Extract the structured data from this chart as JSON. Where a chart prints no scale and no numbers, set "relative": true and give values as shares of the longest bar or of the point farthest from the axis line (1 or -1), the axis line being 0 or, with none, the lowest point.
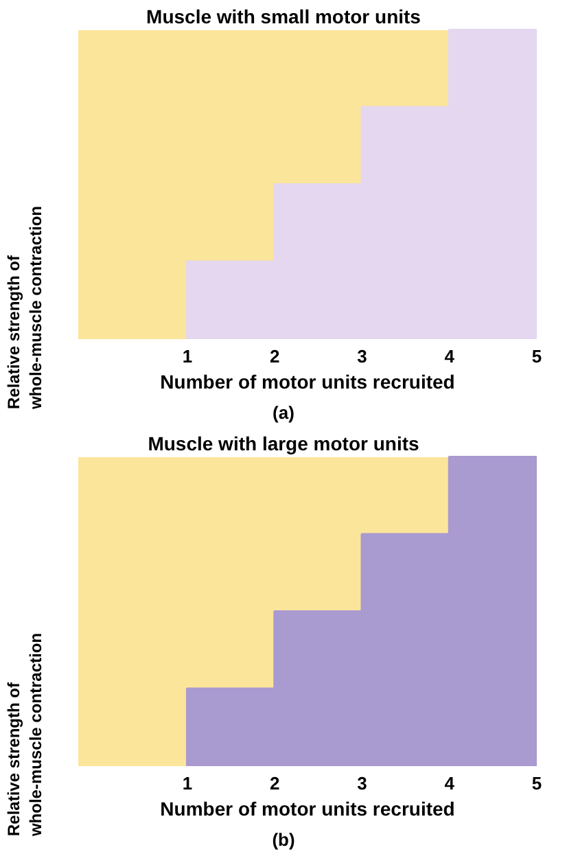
{
  "chart_data": [
    {
      "type": "area",
      "title": "Muscle with small motor units",
      "xlabel": "Number of motor units recruited",
      "ylabel": "Relative strength of\nwhole-muscle contraction",
      "annotations": [
        "(a)"
      ],
      "x": [
        1,
        1,
        2,
        2,
        3,
        3,
        4,
        4,
        5
      ],
      "xlim": [
        -0.25,
        5
      ],
      "xticks": [
        1,
        2,
        3,
        4,
        5
      ],
      "relative": true,
      "series": [
        {
          "color": "#e4d7ef",
          "values": [
            0,
            0.25,
            0.25,
            0.5,
            0.5,
            0.75,
            0.75,
            1,
            1
          ]
        }
      ]
    },
    {
      "type": "area",
      "title": "Muscle with large motor units",
      "xlabel": "Number of motor units recruited",
      "ylabel": "Relative strength of\nwhole-muscle contraction",
      "annotations": [
        "(b)"
      ],
      "x": [
        1,
        1,
        2,
        2,
        3,
        3,
        4,
        4,
        5
      ],
      "xlim": [
        -0.25,
        5
      ],
      "xticks": [
        1,
        2,
        3,
        4,
        5
      ],
      "relative": true,
      "series": [
        {
          "color": "#a99ad0",
          "values": [
            0,
            0.25,
            0.25,
            0.5,
            0.5,
            0.75,
            0.75,
            1,
            1
          ]
        }
      ]
    }
  ]
}
